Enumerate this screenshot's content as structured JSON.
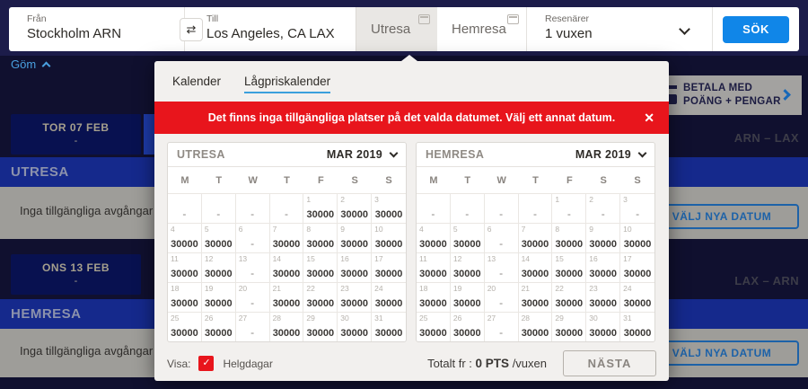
{
  "search_bar": {
    "from_label": "Från",
    "from_value": "Stockholm ARN",
    "swap_icon": "⇄",
    "to_label": "Till",
    "to_value": "Los Angeles, CA LAX",
    "outbound_tab": "Utresa",
    "return_tab": "Hemresa",
    "passengers_label": "Resenärer",
    "passengers_value": "1 vuxen",
    "search_button": "SÖK"
  },
  "background": {
    "hide_link": "Göm",
    "pay_with_line1": "BETALA MED",
    "pay_with_line2": "POÄNG + PENGAR",
    "route_outbound": "ARN – LAX",
    "route_return": "LAX – ARN",
    "outbound_date_card": {
      "date": "TOR 07 FEB",
      "price": "-"
    },
    "return_date_card": {
      "date": "ONS 13 FEB",
      "price": "-"
    },
    "outbound_section": "UTRESA",
    "return_section": "HEMRESA",
    "no_departures_text": "Inga tillgängliga avgångar för de",
    "select_new_dates_button": "VÄLJ NYA DATUM"
  },
  "popup": {
    "tabs": [
      {
        "label": "Kalender",
        "active": false
      },
      {
        "label": "Lågpriskalender",
        "active": true
      }
    ],
    "alert_text": "Det finns inga tillgängliga platser på det valda datumet. Välj ett annat datum.",
    "close_icon": "✕",
    "calendars": [
      {
        "title": "UTRESA",
        "month": "MAR 2019",
        "weekdays": [
          "M",
          "T",
          "W",
          "T",
          "F",
          "S",
          "S"
        ],
        "cells": [
          [
            "",
            "-"
          ],
          [
            "",
            "-"
          ],
          [
            "",
            "-"
          ],
          [
            "",
            "-"
          ],
          [
            "1",
            "30000"
          ],
          [
            "2",
            "30000"
          ],
          [
            "3",
            "30000"
          ],
          [
            "4",
            "30000"
          ],
          [
            "5",
            "30000"
          ],
          [
            "6",
            "-"
          ],
          [
            "7",
            "30000"
          ],
          [
            "8",
            "30000"
          ],
          [
            "9",
            "30000"
          ],
          [
            "10",
            "30000"
          ],
          [
            "11",
            "30000"
          ],
          [
            "12",
            "30000"
          ],
          [
            "13",
            "-"
          ],
          [
            "14",
            "30000"
          ],
          [
            "15",
            "30000"
          ],
          [
            "16",
            "30000"
          ],
          [
            "17",
            "30000"
          ],
          [
            "18",
            "30000"
          ],
          [
            "19",
            "30000"
          ],
          [
            "20",
            "-"
          ],
          [
            "21",
            "30000"
          ],
          [
            "22",
            "30000"
          ],
          [
            "23",
            "30000"
          ],
          [
            "24",
            "30000"
          ],
          [
            "25",
            "30000"
          ],
          [
            "26",
            "30000"
          ],
          [
            "27",
            "-"
          ],
          [
            "28",
            "30000"
          ],
          [
            "29",
            "30000"
          ],
          [
            "30",
            "30000"
          ],
          [
            "31",
            "30000"
          ]
        ]
      },
      {
        "title": "HEMRESA",
        "month": "MAR 2019",
        "weekdays": [
          "M",
          "T",
          "W",
          "T",
          "F",
          "S",
          "S"
        ],
        "cells": [
          [
            "",
            "-"
          ],
          [
            "",
            "-"
          ],
          [
            "",
            "-"
          ],
          [
            "",
            "-"
          ],
          [
            "1",
            "-"
          ],
          [
            "2",
            "-"
          ],
          [
            "3",
            "-"
          ],
          [
            "4",
            "30000"
          ],
          [
            "5",
            "30000"
          ],
          [
            "6",
            "-"
          ],
          [
            "7",
            "30000"
          ],
          [
            "8",
            "30000"
          ],
          [
            "9",
            "30000"
          ],
          [
            "10",
            "30000"
          ],
          [
            "11",
            "30000"
          ],
          [
            "12",
            "30000"
          ],
          [
            "13",
            "-"
          ],
          [
            "14",
            "30000"
          ],
          [
            "15",
            "30000"
          ],
          [
            "16",
            "30000"
          ],
          [
            "17",
            "30000"
          ],
          [
            "18",
            "30000"
          ],
          [
            "19",
            "30000"
          ],
          [
            "20",
            "-"
          ],
          [
            "21",
            "30000"
          ],
          [
            "22",
            "30000"
          ],
          [
            "23",
            "30000"
          ],
          [
            "24",
            "30000"
          ],
          [
            "25",
            "30000"
          ],
          [
            "26",
            "30000"
          ],
          [
            "27",
            "-"
          ],
          [
            "28",
            "30000"
          ],
          [
            "29",
            "30000"
          ],
          [
            "30",
            "30000"
          ],
          [
            "31",
            "30000"
          ]
        ]
      }
    ],
    "footer": {
      "visa_label": "Visa:",
      "checkmark_icon": "✓",
      "holidays_label": "Helgdagar",
      "total_prefix": "Totalt fr :",
      "total_value": "0 PTS",
      "total_suffix": "/vuxen",
      "next_button": "NÄSTA"
    }
  },
  "colors": {
    "accent_blue": "#1086e8",
    "alert_red": "#e8151c",
    "navy_background": "#10102f",
    "section_blue": "#15298c"
  }
}
